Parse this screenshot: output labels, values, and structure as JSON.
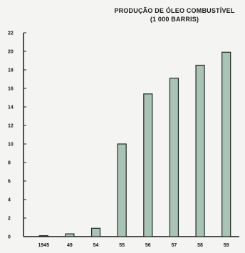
{
  "chart_data": {
    "type": "bar",
    "title": "PRODUÇÃO DE ÓLEO COMBUSTÍVEL",
    "subtitle": "(1 000 BARRIS)",
    "xlabel": "",
    "ylabel": "",
    "categories": [
      "1945",
      "49",
      "54",
      "55",
      "56",
      "57",
      "58",
      "59"
    ],
    "values": [
      0.1,
      0.3,
      0.9,
      10.0,
      15.4,
      17.1,
      18.5,
      19.9
    ],
    "ylim": [
      0,
      22
    ],
    "yticks": [
      0,
      2,
      4,
      6,
      8,
      10,
      12,
      14,
      16,
      18,
      20,
      22
    ],
    "grid": false,
    "bar_color": "#a9c4b4",
    "bar_edge_color": "#1f2a24",
    "axis_color": "#1a1a1a"
  }
}
